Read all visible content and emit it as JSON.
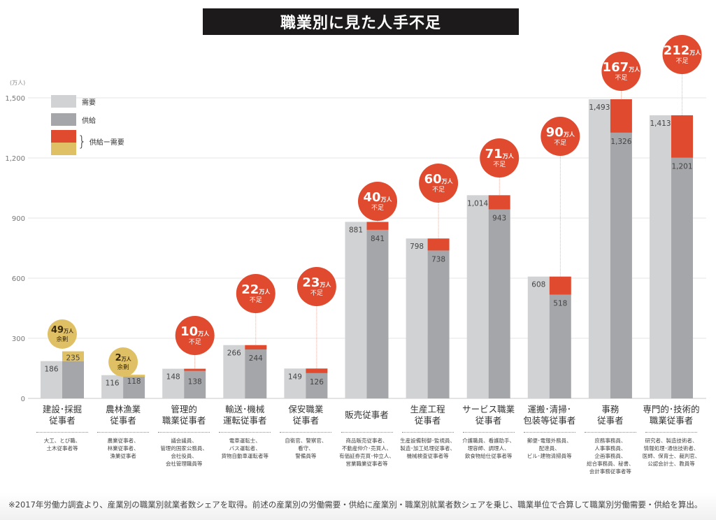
{
  "title": "職業別に見た人手不足",
  "footer_note": "※2017年労働力調査より、産業別の職業別就業者数シェアを取得。前述の産業別の労働需要・供給に産業別・職業別就業者数シェアを乗じ、職業単位で合算して職業別労働需要・供給を算出。",
  "legend": {
    "demand": "需要",
    "supply": "供給",
    "diff": "供給ー需要",
    "brace": "}"
  },
  "colors": {
    "demand": "#d1d2d4",
    "supply": "#a5a6a9",
    "shortage": "#e04a2f",
    "surplus": "#e0c064",
    "grid": "#e4e4e4",
    "title_bg": "#1c1a1a"
  },
  "chart_data": {
    "type": "bar",
    "title": "職業別に見た人手不足",
    "ylabel": "(万人)",
    "ylim": [
      0,
      1500
    ],
    "yticks": [
      0,
      300,
      600,
      900,
      1200,
      1500
    ],
    "ytick_labels": [
      "0",
      "300",
      "600",
      "900",
      "1,200",
      "1,500"
    ],
    "grid": true,
    "legend_position": "top-left",
    "categories": [
      "建設・採掘従事者",
      "農林漁業従事者",
      "管理的職業従事者",
      "輸送・機械運転従事者",
      "保安職業従事者",
      "販売従事者",
      "生産工程従事者",
      "サービス職業従事者",
      "運搬・清掃・包装等従事者",
      "事務従事者",
      "専門的・技術的職業従事者"
    ],
    "category_labels": [
      "建設･採掘\n従事者",
      "農林漁業\n従事者",
      "管理的\n職業従事者",
      "輸送･機械\n運転従事者",
      "保安職業\n従事者",
      "販売従事者",
      "生産工程\n従事者",
      "サービス職業\n従事者",
      "運搬･清掃･\n包装等従事者",
      "事務\n従事者",
      "専門的･技術的\n職業従事者"
    ],
    "category_examples": [
      "大工、とび職、\n土木従事者等",
      "農業従事者、\n林業従事者、\n漁業従事者",
      "議会議員、\n管理的国家公務員、\n会社役員、\n会社管理職員等",
      "電車運転士、\nバス運転者、\n貨物自動車運転者等",
      "自衛官、警察官、\n看守、\n警備員等",
      "商品販売従事者、\n不動産仲介･売買人、\n有価証券売買･仲立人、\n営業職業従事者等",
      "生産設備制御･監視員、\n製造･加工処理従事者、\n機械検査従事者等",
      "介護職員、看護助手、\n理容師、調理人、\n飲食物給仕従事者等",
      "郵便･電報外務員、\n配達員、\nビル･建物清掃員等",
      "庶務事務員、\n人事事務員、\n企画事務員、\n総合事務員、秘書、\n会計事務従事者等",
      "研究者、製造技術者、\n情報処理･通信技術者、\n医師、保育士、裁判官、\n公認会計士、教員等"
    ],
    "series": [
      {
        "name": "需要",
        "values": [
          186,
          116,
          148,
          266,
          149,
          881,
          798,
          1014,
          608,
          1493,
          1413
        ],
        "labels": [
          "186",
          "116",
          "148",
          "266",
          "149",
          "881",
          "798",
          "1,014",
          "608",
          "1,493",
          "1,413"
        ]
      },
      {
        "name": "供給",
        "values": [
          235,
          118,
          138,
          244,
          126,
          841,
          738,
          943,
          518,
          1326,
          1201
        ],
        "labels": [
          "235",
          "118",
          "138",
          "244",
          "126",
          "841",
          "738",
          "943",
          "518",
          "1,326",
          "1,201"
        ]
      }
    ],
    "gap_annotations": [
      {
        "value": "49",
        "unit": "万人",
        "status": "余剰",
        "type": "surplus"
      },
      {
        "value": "2",
        "unit": "万人",
        "status": "余剰",
        "type": "surplus"
      },
      {
        "value": "10",
        "unit": "万人",
        "status": "不足",
        "type": "shortage"
      },
      {
        "value": "22",
        "unit": "万人",
        "status": "不足",
        "type": "shortage"
      },
      {
        "value": "23",
        "unit": "万人",
        "status": "不足",
        "type": "shortage"
      },
      {
        "value": "40",
        "unit": "万人",
        "status": "不足",
        "type": "shortage"
      },
      {
        "value": "60",
        "unit": "万人",
        "status": "不足",
        "type": "shortage"
      },
      {
        "value": "71",
        "unit": "万人",
        "status": "不足",
        "type": "shortage"
      },
      {
        "value": "90",
        "unit": "万人",
        "status": "不足",
        "type": "shortage"
      },
      {
        "value": "167",
        "unit": "万人",
        "status": "不足",
        "type": "shortage"
      },
      {
        "value": "212",
        "unit": "万人",
        "status": "不足",
        "type": "shortage"
      }
    ]
  }
}
